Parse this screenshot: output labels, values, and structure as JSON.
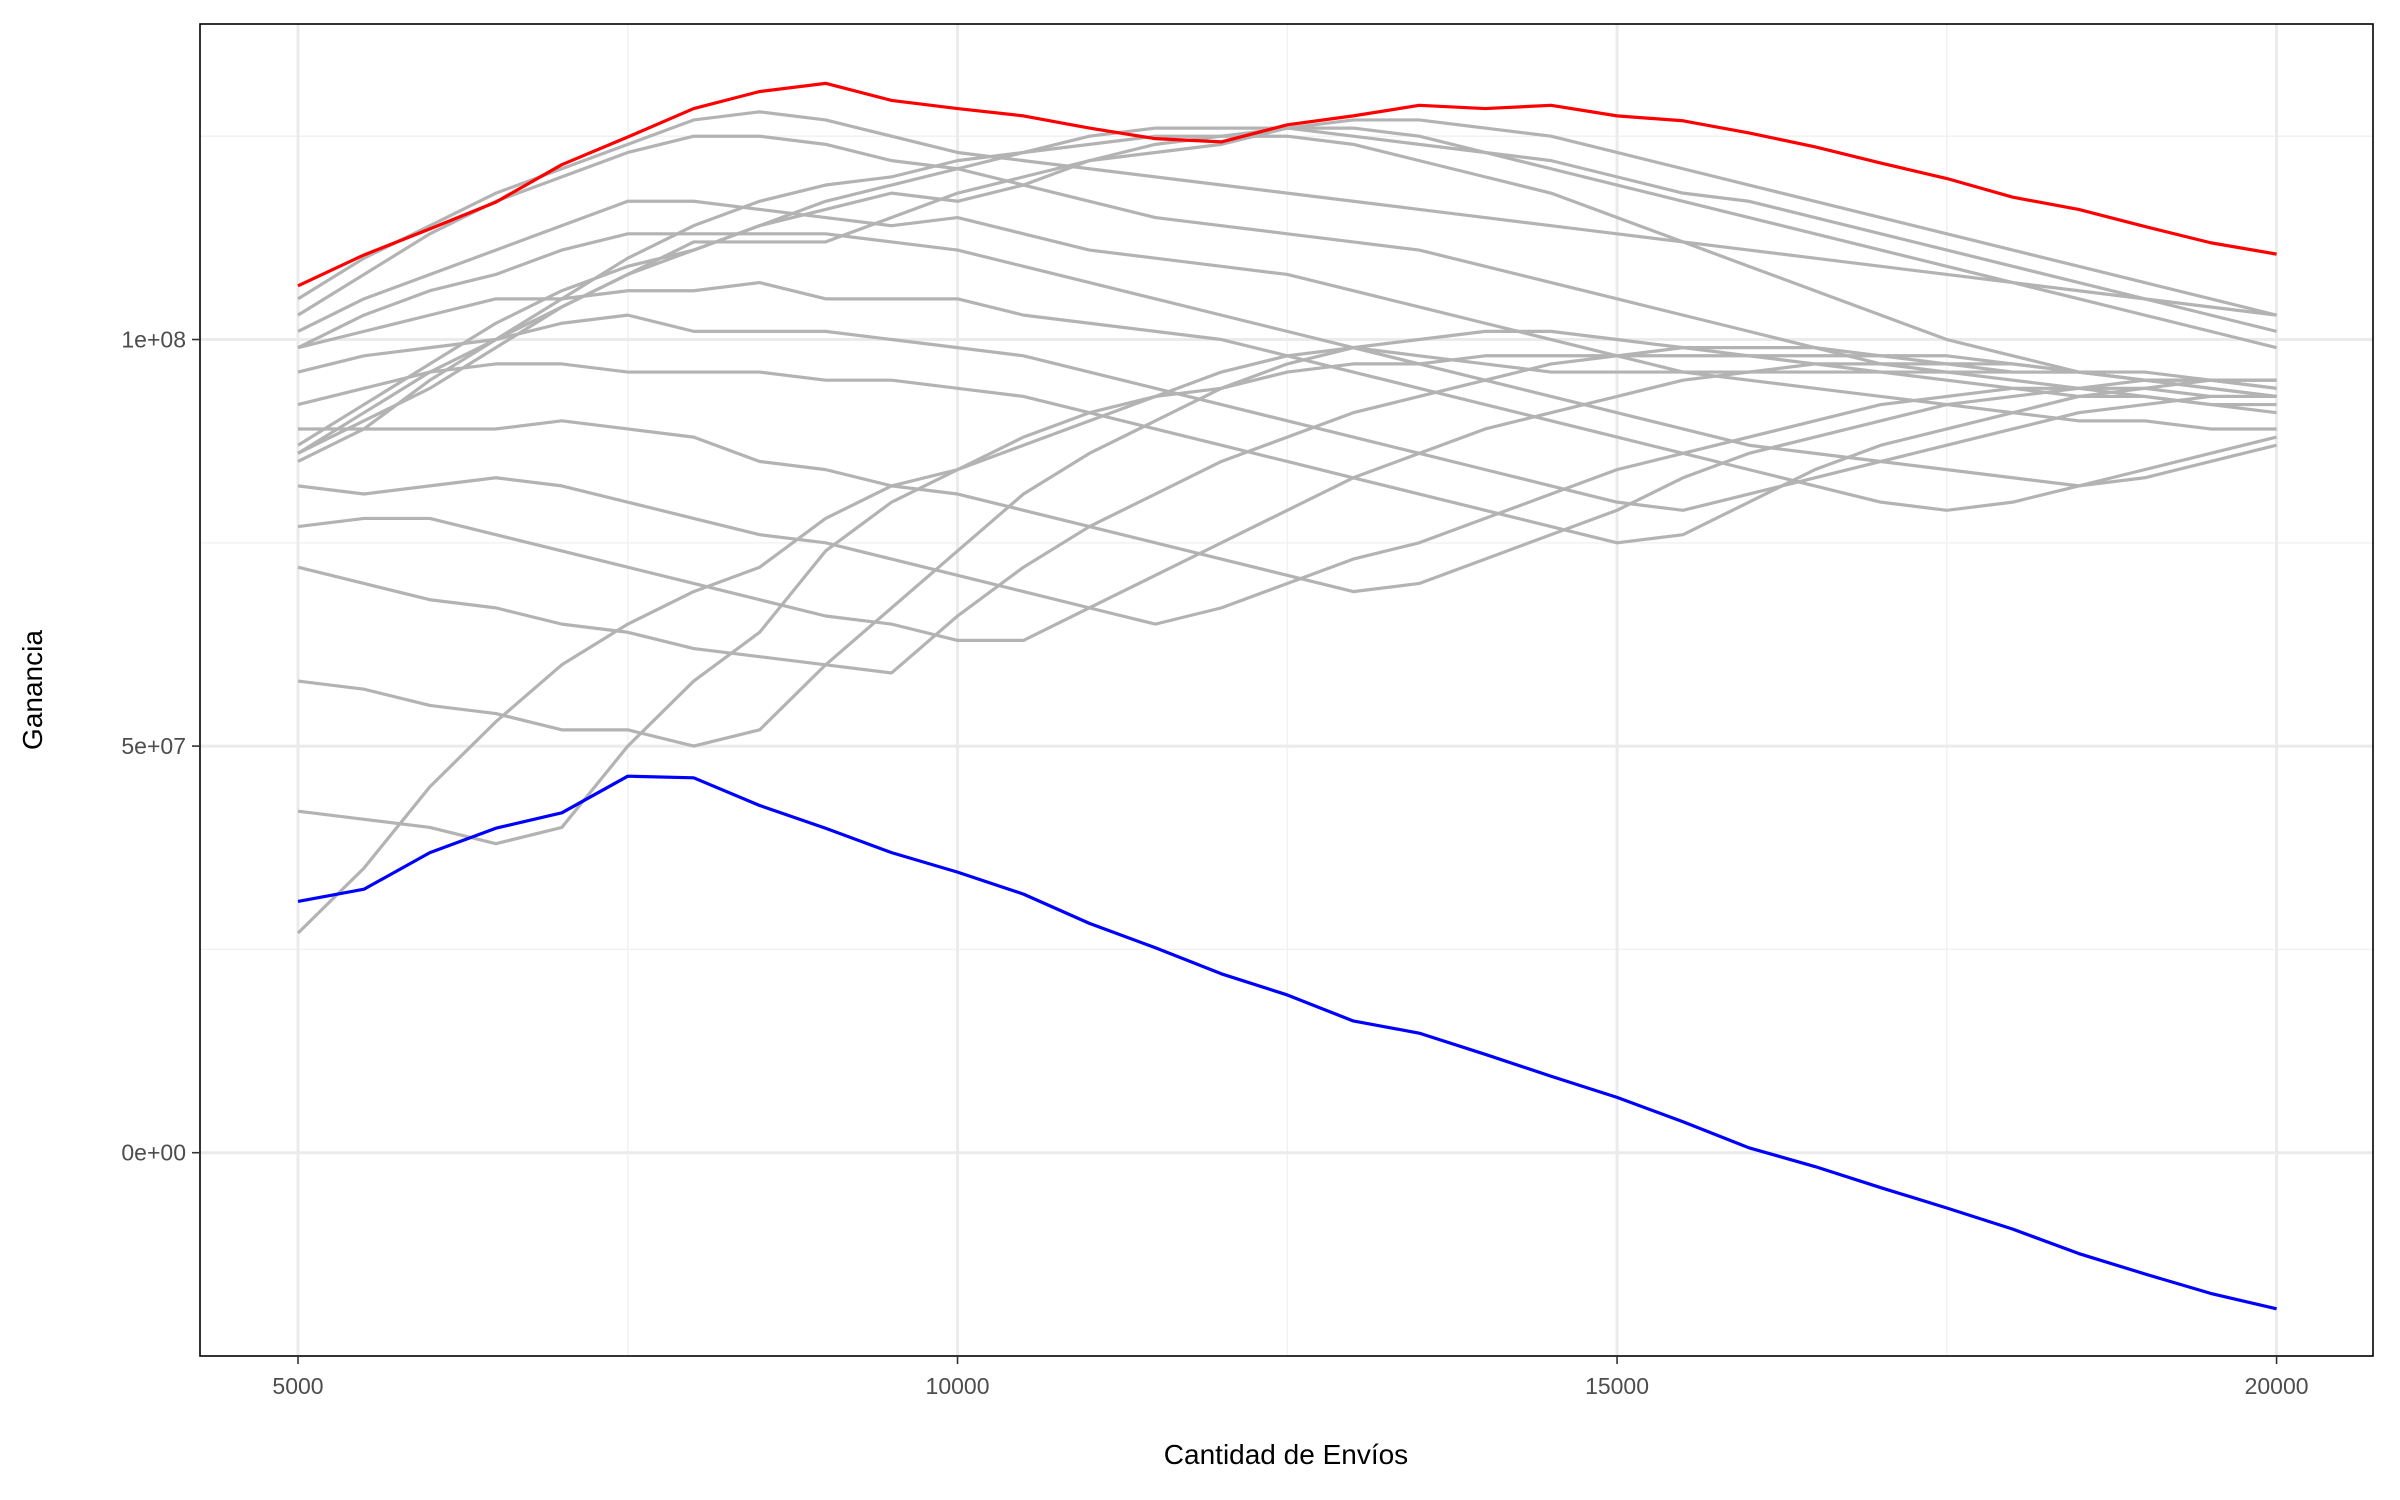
{
  "chart_data": {
    "type": "line",
    "x_label": "Cantidad de Envíos",
    "y_label": "Ganancia",
    "x": [
      5000,
      5500,
      6000,
      6500,
      7000,
      7500,
      8000,
      8500,
      9000,
      9500,
      10000,
      10500,
      11000,
      11500,
      12000,
      12500,
      13000,
      13500,
      14000,
      14500,
      15000,
      15500,
      16000,
      16500,
      17000,
      17500,
      18000,
      18500,
      19000,
      19500,
      20000
    ],
    "xlim": [
      4257,
      20731
    ],
    "ylim": [
      -25000000,
      138800000
    ],
    "xticks": [
      5000,
      10000,
      15000,
      20000
    ],
    "x_minor_ticks": [
      7500,
      12500,
      17500
    ],
    "yticks": [
      {
        "value": 0,
        "label": "0e+00"
      },
      {
        "value": 50000000,
        "label": "5e+07"
      },
      {
        "value": 100000000,
        "label": "1e+08"
      }
    ],
    "y_minor_ticks": [
      25000000,
      75000000,
      125000000
    ],
    "grid": true,
    "series": [
      {
        "color": "#b3b3b3",
        "values": [
          105000000.0,
          110000000.0,
          114000000.0,
          118000000.0,
          121000000.0,
          124000000.0,
          127000000.0,
          128000000.0,
          127000000.0,
          125000000.0,
          123000000.0,
          122000000.0,
          121000000.0,
          120000000.0,
          119000000.0,
          118000000.0,
          117000000.0,
          116000000.0,
          115000000.0,
          114000000.0,
          113000000.0,
          112000000.0,
          111000000.0,
          110000000.0,
          109000000.0,
          108000000.0,
          107000000.0,
          106000000.0,
          105000000.0,
          104000000.0,
          103000000.0
        ]
      },
      {
        "color": "#b3b3b3",
        "values": [
          103000000.0,
          108000000.0,
          113000000.0,
          117000000.0,
          120000000.0,
          123000000.0,
          125000000.0,
          125000000.0,
          124000000.0,
          122000000.0,
          121000000.0,
          119000000.0,
          117000000.0,
          115000000.0,
          114000000.0,
          113000000.0,
          112000000.0,
          111000000.0,
          109000000.0,
          107000000.0,
          105000000.0,
          103000000.0,
          101000000.0,
          99000000.0,
          97000000.0,
          96000000.0,
          95000000.0,
          94000000.0,
          93000000.0,
          92000000.0,
          92000000.0
        ]
      },
      {
        "color": "#b3b3b3",
        "values": [
          101000000.0,
          105000000.0,
          108000000.0,
          111000000.0,
          114000000.0,
          117000000.0,
          117000000.0,
          116000000.0,
          115000000.0,
          114000000.0,
          115000000.0,
          113000000.0,
          111000000.0,
          110000000.0,
          109000000.0,
          108000000.0,
          106000000.0,
          104000000.0,
          102000000.0,
          100000000.0,
          98000000.0,
          96000000.0,
          95000000.0,
          94000000.0,
          93000000.0,
          92000000.0,
          91000000.0,
          90000000.0,
          90000000.0,
          89000000.0,
          89000000.0
        ]
      },
      {
        "color": "#b3b3b3",
        "values": [
          99000000.0,
          103000000.0,
          106000000.0,
          108000000.0,
          111000000.0,
          113000000.0,
          113000000.0,
          113000000.0,
          113000000.0,
          112000000.0,
          111000000.0,
          109000000.0,
          107000000.0,
          105000000.0,
          103000000.0,
          101000000.0,
          99000000.0,
          97000000.0,
          95000000.0,
          93000000.0,
          91000000.0,
          89000000.0,
          87000000.0,
          86000000.0,
          85000000.0,
          84000000.0,
          83000000.0,
          82000000.0,
          83000000.0,
          85000000.0,
          87000000.0
        ]
      },
      {
        "color": "#b3b3b3",
        "values": [
          99000000.0,
          101000000.0,
          103000000.0,
          105000000.0,
          105000000.0,
          106000000.0,
          106000000.0,
          107000000.0,
          105000000.0,
          105000000.0,
          105000000.0,
          103000000.0,
          102000000.0,
          101000000.0,
          100000000.0,
          98000000.0,
          96000000.0,
          94000000.0,
          92000000.0,
          90000000.0,
          88000000.0,
          86000000.0,
          84000000.0,
          82000000.0,
          80000000.0,
          79000000.0,
          80000000.0,
          82000000.0,
          84000000.0,
          86000000.0,
          88000000.0
        ]
      },
      {
        "color": "#b3b3b3",
        "values": [
          96000000.0,
          98000000.0,
          99000000.0,
          100000000.0,
          102000000.0,
          103000000.0,
          101000000.0,
          101000000.0,
          101000000.0,
          100000000.0,
          99000000.0,
          98000000.0,
          96000000.0,
          94000000.0,
          92000000.0,
          90000000.0,
          88000000.0,
          86000000.0,
          84000000.0,
          82000000.0,
          80000000.0,
          79000000.0,
          81000000.0,
          83000000.0,
          85000000.0,
          87000000.0,
          89000000.0,
          91000000.0,
          92000000.0,
          93000000.0,
          93000000.0
        ]
      },
      {
        "color": "#b3b3b3",
        "values": [
          92000000.0,
          94000000.0,
          96000000.0,
          97000000.0,
          97000000.0,
          96000000.0,
          96000000.0,
          96000000.0,
          95000000.0,
          95000000.0,
          94000000.0,
          93000000.0,
          91000000.0,
          89000000.0,
          87000000.0,
          85000000.0,
          83000000.0,
          81000000.0,
          79000000.0,
          77000000.0,
          75000000.0,
          76000000.0,
          80000000.0,
          84000000.0,
          87000000.0,
          89000000.0,
          91000000.0,
          93000000.0,
          94000000.0,
          95000000.0,
          95000000.0
        ]
      },
      {
        "color": "#b3b3b3",
        "values": [
          89000000.0,
          89000000.0,
          89000000.0,
          89000000.0,
          90000000.0,
          89000000.0,
          88000000.0,
          85000000.0,
          84000000.0,
          82000000.0,
          81000000.0,
          79000000.0,
          77000000.0,
          75000000.0,
          73000000.0,
          71000000.0,
          69000000.0,
          70000000.0,
          73000000.0,
          76000000.0,
          79000000.0,
          83000000.0,
          86000000.0,
          88000000.0,
          90000000.0,
          92000000.0,
          93000000.0,
          94000000.0,
          95000000.0,
          95000000.0,
          95000000.0
        ]
      },
      {
        "color": "#b3b3b3",
        "values": [
          82000000.0,
          81000000.0,
          82000000.0,
          83000000.0,
          82000000.0,
          80000000.0,
          78000000.0,
          76000000.0,
          75000000.0,
          73000000.0,
          71000000.0,
          69000000.0,
          67000000.0,
          65000000.0,
          67000000.0,
          70000000.0,
          73000000.0,
          75000000.0,
          78000000.0,
          81000000.0,
          84000000.0,
          86000000.0,
          88000000.0,
          90000000.0,
          92000000.0,
          93000000.0,
          94000000.0,
          94000000.0,
          94000000.0,
          93000000.0,
          93000000.0
        ]
      },
      {
        "color": "#b3b3b3",
        "values": [
          77000000.0,
          78000000.0,
          78000000.0,
          76000000.0,
          74000000.0,
          72000000.0,
          70000000.0,
          68000000.0,
          66000000.0,
          65000000.0,
          63000000.0,
          63000000.0,
          67000000.0,
          71000000.0,
          75000000.0,
          79000000.0,
          83000000.0,
          86000000.0,
          89000000.0,
          91000000.0,
          93000000.0,
          95000000.0,
          96000000.0,
          97000000.0,
          97000000.0,
          97000000.0,
          97000000.0,
          96000000.0,
          96000000.0,
          95000000.0,
          95000000.0
        ]
      },
      {
        "color": "#b3b3b3",
        "values": [
          72000000.0,
          70000000.0,
          68000000.0,
          67000000.0,
          65000000.0,
          64000000.0,
          62000000.0,
          61000000.0,
          60000000.0,
          59000000.0,
          66000000.0,
          72000000.0,
          77000000.0,
          81000000.0,
          85000000.0,
          88000000.0,
          91000000.0,
          93000000.0,
          95000000.0,
          97000000.0,
          98000000.0,
          99000000.0,
          99000000.0,
          99000000.0,
          98000000.0,
          98000000.0,
          97000000.0,
          96000000.0,
          95000000.0,
          95000000.0,
          94000000.0
        ]
      },
      {
        "color": "#b3b3b3",
        "values": [
          58000000.0,
          57000000.0,
          55000000.0,
          54000000.0,
          52000000.0,
          52000000.0,
          50000000.0,
          52000000.0,
          60000000.0,
          67000000.0,
          74000000.0,
          81000000.0,
          86000000.0,
          90000000.0,
          94000000.0,
          97000000.0,
          99000000.0,
          100000000.0,
          101000000.0,
          101000000.0,
          100000000.0,
          99000000.0,
          98000000.0,
          97000000.0,
          96000000.0,
          95000000.0,
          94000000.0,
          93000000.0,
          93000000.0,
          92000000.0,
          91000000.0
        ]
      },
      {
        "color": "#b3b3b3",
        "values": [
          42000000.0,
          41000000.0,
          40000000.0,
          38000000.0,
          40000000.0,
          50000000.0,
          58000000.0,
          64000000.0,
          74000000.0,
          80000000.0,
          84000000.0,
          87000000.0,
          90000000.0,
          93000000.0,
          96000000.0,
          98000000.0,
          99000000.0,
          98000000.0,
          97000000.0,
          96000000.0,
          96000000.0,
          96000000.0,
          96000000.0,
          96000000.0,
          96000000.0,
          96000000.0,
          96000000.0,
          96000000.0,
          95000000.0,
          95000000.0,
          94000000.0
        ]
      },
      {
        "color": "#b3b3b3",
        "values": [
          27000000.0,
          35000000.0,
          45000000.0,
          53000000.0,
          60000000.0,
          65000000.0,
          69000000.0,
          72000000.0,
          78000000.0,
          82000000.0,
          84000000.0,
          88000000.0,
          91000000.0,
          93000000.0,
          94000000.0,
          96000000.0,
          97000000.0,
          97000000.0,
          98000000.0,
          98000000.0,
          98000000.0,
          98000000.0,
          98000000.0,
          98000000.0,
          98000000.0,
          97000000.0,
          96000000.0,
          96000000.0,
          95000000.0,
          94000000.0,
          93000000.0
        ]
      },
      {
        "color": "#b3b3b3",
        "values": [
          85000000.0,
          89000000.0,
          95000000.0,
          100000000.0,
          105000000.0,
          110000000.0,
          114000000.0,
          117000000.0,
          119000000.0,
          120000000.0,
          122000000.0,
          123000000.0,
          124000000.0,
          125000000.0,
          125000000.0,
          126000000.0,
          127000000.0,
          127000000.0,
          126000000.0,
          125000000.0,
          123000000.0,
          121000000.0,
          119000000.0,
          117000000.0,
          115000000.0,
          113000000.0,
          111000000.0,
          109000000.0,
          107000000.0,
          105000000.0,
          103000000.0
        ]
      },
      {
        "color": "#b3b3b3",
        "values": [
          86000000.0,
          91000000.0,
          96000000.0,
          100000000.0,
          104000000.0,
          108000000.0,
          111000000.0,
          114000000.0,
          117000000.0,
          119000000.0,
          121000000.0,
          123000000.0,
          125000000.0,
          126000000.0,
          126000000.0,
          126000000.0,
          125000000.0,
          124000000.0,
          123000000.0,
          122000000.0,
          120000000.0,
          118000000.0,
          117000000.0,
          115000000.0,
          113000000.0,
          111000000.0,
          109000000.0,
          107000000.0,
          105000000.0,
          103000000.0,
          101000000.0
        ]
      },
      {
        "color": "#b3b3b3",
        "values": [
          86000000.0,
          90000000.0,
          94000000.0,
          99000000.0,
          104000000.0,
          108000000.0,
          112000000.0,
          112000000.0,
          112000000.0,
          115000000.0,
          118000000.0,
          120000000.0,
          122000000.0,
          123000000.0,
          124000000.0,
          126000000.0,
          126000000.0,
          125000000.0,
          123000000.0,
          121000000.0,
          119000000.0,
          117000000.0,
          115000000.0,
          113000000.0,
          111000000.0,
          109000000.0,
          107000000.0,
          105000000.0,
          103000000.0,
          101000000.0,
          99000000.0
        ]
      },
      {
        "color": "#b3b3b3",
        "values": [
          87000000.0,
          92000000.0,
          97000000.0,
          102000000.0,
          106000000.0,
          109000000.0,
          111000000.0,
          114000000.0,
          116000000.0,
          118000000.0,
          117000000.0,
          119000000.0,
          122000000.0,
          124000000.0,
          125000000.0,
          125000000.0,
          124000000.0,
          122000000.0,
          120000000.0,
          118000000.0,
          115000000.0,
          112000000.0,
          109000000.0,
          106000000.0,
          103000000.0,
          100000000.0,
          98000000.0,
          96000000.0,
          95000000.0,
          94000000.0,
          93000000.0
        ]
      },
      {
        "color": "#ff0000",
        "values": [
          106600000.0,
          110400000.0,
          113600000.0,
          116900000.0,
          121500000.0,
          124900000.0,
          128400000.0,
          130500000.0,
          131500000.0,
          129400000.0,
          128400000.0,
          127500000.0,
          126000000.0,
          124700000.0,
          124300000.0,
          126400000.0,
          127500000.0,
          128800000.0,
          128400000.0,
          128800000.0,
          127500000.0,
          126900000.0,
          125400000.0,
          123700000.0,
          121700000.0,
          119800000.0,
          117500000.0,
          116000000.0,
          113900000.0,
          111900000.0,
          110500000.0
        ]
      },
      {
        "color": "#0000ff",
        "values": [
          30900000.0,
          32400000.0,
          36900000.0,
          39900000.0,
          41800000.0,
          46300000.0,
          46100000.0,
          42700000.0,
          39900000.0,
          36900000.0,
          34500000.0,
          31800000.0,
          28200000.0,
          25200000.0,
          22000000.0,
          19400000.0,
          16200000.0,
          14700000.0,
          12100000.0,
          9400000.0,
          6800000.0,
          3800000.0,
          600000.0,
          -1700000.0,
          -4300000.0,
          -6800000.0,
          -9400000.0,
          -12400000.0,
          -14900000.0,
          -17300000.0,
          -19200000.0
        ]
      }
    ]
  }
}
